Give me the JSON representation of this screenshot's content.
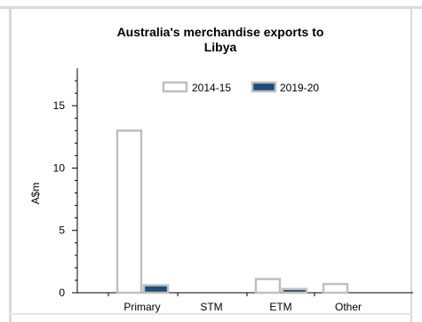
{
  "chart_data": {
    "type": "bar",
    "title_line1": "Australia's merchandise exports to",
    "title_line2": "Libya",
    "ylabel": "A$m",
    "xlabel": "",
    "categories": [
      "Primary",
      "STM",
      "ETM",
      "Other"
    ],
    "series": [
      {
        "name": "2014-15",
        "values": [
          13.0,
          0.0,
          1.1,
          0.7
        ],
        "fill": "#ffffff",
        "stroke": "#bfbfbf"
      },
      {
        "name": "2019-20",
        "values": [
          0.6,
          0.0,
          0.3,
          0.0
        ],
        "fill": "#1f4e79",
        "stroke": "#bfbfbf"
      }
    ],
    "ylim": [
      0,
      18
    ],
    "yticks": [
      0,
      5,
      10,
      15
    ],
    "legend_position": "top-center",
    "grid": false
  }
}
